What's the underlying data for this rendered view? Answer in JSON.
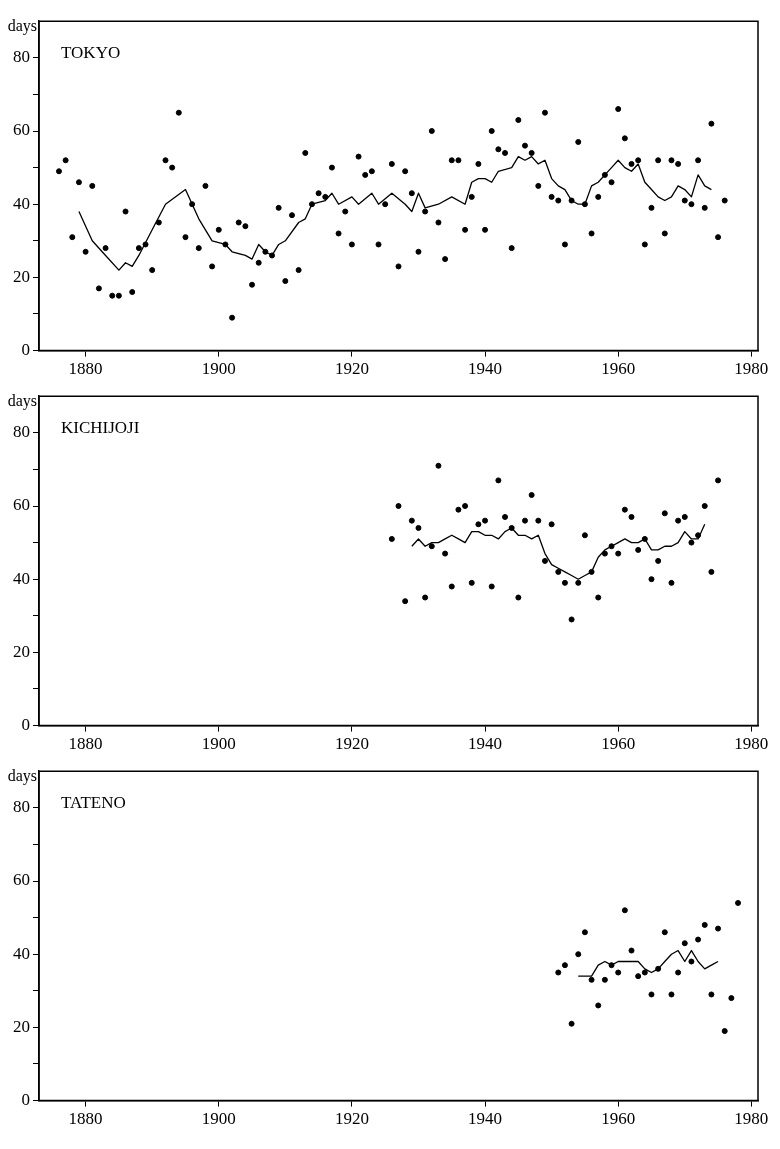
{
  "chart_data": [
    {
      "type": "scatter",
      "title": "TOKYO",
      "ylabel": "days",
      "xlim": [
        1873,
        1981
      ],
      "ylim": [
        0,
        90
      ],
      "xticks": [
        1880,
        1900,
        1920,
        1940,
        1960,
        1980
      ],
      "yticks": [
        0,
        {
          "value": 10,
          "label": null
        },
        20,
        {
          "value": 30,
          "label": null
        },
        40,
        {
          "value": 50,
          "label": null
        },
        60,
        {
          "value": 70,
          "label": null
        },
        80
      ],
      "grid": false,
      "legend": false,
      "series": [
        {
          "marker": "circle",
          "color": "#000000",
          "x": [
            1876,
            1877,
            1878,
            1879,
            1880,
            1881,
            1882,
            1883,
            1884,
            1885,
            1886,
            1887,
            1888,
            1889,
            1890,
            1891,
            1892,
            1893,
            1894,
            1895,
            1896,
            1897,
            1898,
            1899,
            1900,
            1901,
            1902,
            1903,
            1904,
            1905,
            1906,
            1907,
            1908,
            1909,
            1910,
            1911,
            1912,
            1913,
            1914,
            1915,
            1916,
            1917,
            1918,
            1919,
            1920,
            1921,
            1922,
            1923,
            1924,
            1925,
            1926,
            1927,
            1928,
            1929,
            1930,
            1931,
            1932,
            1933,
            1934,
            1935,
            1936,
            1937,
            1938,
            1939,
            1940,
            1941,
            1942,
            1943,
            1944,
            1945,
            1946,
            1947,
            1948,
            1949,
            1950,
            1951,
            1952,
            1953,
            1954,
            1955,
            1956,
            1957,
            1958,
            1959,
            1960,
            1961,
            1962,
            1963,
            1964,
            1965,
            1966,
            1967,
            1968,
            1969,
            1970,
            1971,
            1972,
            1973,
            1974,
            1975,
            1976
          ],
          "values": [
            49,
            52,
            31,
            46,
            27,
            45,
            17,
            28,
            15,
            15,
            38,
            16,
            28,
            29,
            22,
            35,
            52,
            50,
            65,
            31,
            40,
            28,
            45,
            23,
            33,
            29,
            9,
            35,
            34,
            18,
            24,
            27,
            26,
            39,
            19,
            37,
            22,
            54,
            40,
            43,
            42,
            50,
            32,
            38,
            29,
            53,
            48,
            49,
            29,
            40,
            51,
            23,
            49,
            43,
            27,
            38,
            60,
            35,
            25,
            52,
            52,
            33,
            42,
            51,
            33,
            60,
            55,
            54,
            28,
            63,
            56,
            54,
            45,
            65,
            42,
            41,
            29,
            41,
            57,
            40,
            32,
            42,
            48,
            46,
            66,
            58,
            51,
            52,
            29,
            39,
            52,
            32,
            52,
            51,
            41,
            40,
            52,
            39,
            62,
            31,
            41
          ]
        },
        {
          "type": "line",
          "marker": "none",
          "color": "#000000",
          "x": [
            1879,
            1881,
            1883,
            1885,
            1886,
            1887,
            1888,
            1890,
            1892,
            1895,
            1897,
            1899,
            1901,
            1902,
            1904,
            1905,
            1906,
            1907,
            1908,
            1909,
            1910,
            1912,
            1913,
            1914,
            1916,
            1917,
            1918,
            1920,
            1921,
            1923,
            1924,
            1926,
            1928,
            1929,
            1930,
            1931,
            1933,
            1935,
            1937,
            1938,
            1939,
            1940,
            1941,
            1942,
            1944,
            1945,
            1946,
            1947,
            1948,
            1949,
            1950,
            1951,
            1952,
            1953,
            1954,
            1955,
            1956,
            1957,
            1958,
            1959,
            1960,
            1961,
            1962,
            1963,
            1964,
            1965,
            1966,
            1967,
            1968,
            1969,
            1970,
            1971,
            1972,
            1973,
            1974
          ],
          "values": [
            38,
            30,
            26,
            22,
            24,
            23,
            26,
            33,
            40,
            44,
            36,
            30,
            29,
            27,
            26,
            25,
            29,
            27,
            26,
            29,
            30,
            35,
            36,
            40,
            41,
            43,
            40,
            42,
            40,
            43,
            40,
            43,
            40,
            38,
            43,
            39,
            40,
            42,
            40,
            46,
            47,
            47,
            46,
            49,
            50,
            53,
            52,
            53,
            51,
            52,
            47,
            45,
            44,
            41,
            40,
            40,
            45,
            46,
            48,
            50,
            52,
            50,
            49,
            51,
            46,
            44,
            42,
            41,
            42,
            45,
            44,
            42,
            48,
            45,
            44
          ]
        }
      ]
    },
    {
      "type": "scatter",
      "title": "KICHIJOJI",
      "ylabel": "days",
      "xlim": [
        1873,
        1981
      ],
      "ylim": [
        0,
        90
      ],
      "xticks": [
        1880,
        1900,
        1920,
        1940,
        1960,
        1980
      ],
      "yticks": [
        0,
        {
          "value": 10,
          "label": null
        },
        20,
        {
          "value": 30,
          "label": null
        },
        40,
        {
          "value": 50,
          "label": null
        },
        60,
        {
          "value": 70,
          "label": null
        },
        80
      ],
      "grid": false,
      "legend": false,
      "series": [
        {
          "marker": "circle",
          "color": "#000000",
          "x": [
            1926,
            1927,
            1928,
            1929,
            1930,
            1931,
            1932,
            1933,
            1934,
            1935,
            1936,
            1937,
            1938,
            1939,
            1940,
            1941,
            1942,
            1943,
            1944,
            1945,
            1946,
            1947,
            1948,
            1949,
            1950,
            1951,
            1952,
            1953,
            1954,
            1955,
            1956,
            1957,
            1958,
            1959,
            1960,
            1961,
            1962,
            1963,
            1964,
            1965,
            1966,
            1967,
            1968,
            1969,
            1970,
            1971,
            1972,
            1973,
            1974,
            1975
          ],
          "values": [
            51,
            60,
            34,
            56,
            54,
            35,
            49,
            71,
            47,
            38,
            59,
            60,
            39,
            55,
            56,
            38,
            67,
            57,
            54,
            35,
            56,
            63,
            56,
            45,
            55,
            42,
            39,
            29,
            39,
            52,
            42,
            35,
            47,
            49,
            47,
            59,
            57,
            48,
            51,
            40,
            45,
            58,
            39,
            56,
            57,
            50,
            52,
            60,
            42,
            67
          ]
        },
        {
          "type": "line",
          "marker": "none",
          "color": "#000000",
          "x": [
            1929,
            1930,
            1931,
            1932,
            1933,
            1934,
            1935,
            1936,
            1937,
            1938,
            1939,
            1940,
            1941,
            1942,
            1943,
            1944,
            1945,
            1946,
            1947,
            1948,
            1949,
            1950,
            1951,
            1952,
            1953,
            1954,
            1955,
            1956,
            1957,
            1958,
            1959,
            1960,
            1961,
            1962,
            1963,
            1964,
            1965,
            1966,
            1967,
            1968,
            1969,
            1970,
            1971,
            1972,
            1973
          ],
          "values": [
            49,
            51,
            49,
            50,
            50,
            51,
            52,
            51,
            50,
            53,
            53,
            52,
            52,
            51,
            53,
            54,
            52,
            52,
            51,
            52,
            47,
            44,
            43,
            42,
            41,
            40,
            41,
            42,
            46,
            48,
            49,
            50,
            51,
            50,
            50,
            51,
            48,
            48,
            49,
            49,
            50,
            53,
            51,
            51,
            55
          ]
        }
      ]
    },
    {
      "type": "scatter",
      "title": "TATENO",
      "ylabel": "days",
      "xlim": [
        1873,
        1981
      ],
      "ylim": [
        0,
        90
      ],
      "xticks": [
        1880,
        1900,
        1920,
        1940,
        1960,
        1980
      ],
      "yticks": [
        0,
        {
          "value": 10,
          "label": null
        },
        20,
        {
          "value": 30,
          "label": null
        },
        40,
        {
          "value": 50,
          "label": null
        },
        60,
        {
          "value": 70,
          "label": null
        },
        80
      ],
      "grid": false,
      "legend": false,
      "series": [
        {
          "marker": "circle",
          "color": "#000000",
          "x": [
            1951,
            1952,
            1953,
            1954,
            1955,
            1956,
            1957,
            1958,
            1959,
            1960,
            1961,
            1962,
            1963,
            1964,
            1965,
            1966,
            1967,
            1968,
            1969,
            1970,
            1971,
            1972,
            1973,
            1974,
            1975,
            1976,
            1977,
            1978
          ],
          "values": [
            35,
            37,
            21,
            40,
            46,
            33,
            26,
            33,
            37,
            35,
            52,
            41,
            34,
            35,
            29,
            36,
            46,
            29,
            35,
            43,
            38,
            44,
            48,
            29,
            47,
            19,
            28,
            54
          ]
        },
        {
          "type": "line",
          "marker": "none",
          "color": "#000000",
          "x": [
            1954,
            1955,
            1956,
            1957,
            1958,
            1959,
            1960,
            1961,
            1962,
            1963,
            1964,
            1965,
            1966,
            1967,
            1968,
            1969,
            1970,
            1971,
            1972,
            1973,
            1974,
            1975
          ],
          "values": [
            34,
            34,
            34,
            37,
            38,
            37,
            38,
            38,
            38,
            38,
            36,
            35,
            36,
            38,
            40,
            41,
            38,
            41,
            38,
            36,
            37,
            38
          ]
        }
      ]
    }
  ]
}
